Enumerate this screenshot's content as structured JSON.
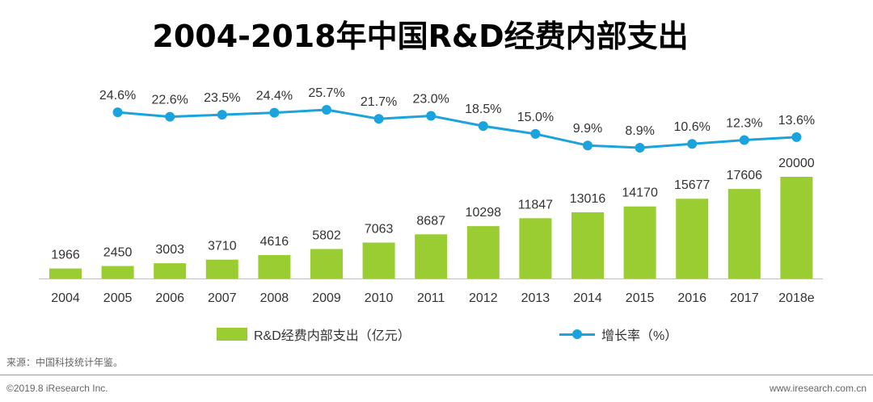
{
  "chart_data": {
    "type": "bar",
    "title": "2004-2018年中国R&D经费内部支出",
    "categories": [
      "2004",
      "2005",
      "2006",
      "2007",
      "2008",
      "2009",
      "2010",
      "2011",
      "2012",
      "2013",
      "2014",
      "2015",
      "2016",
      "2017",
      "2018e"
    ],
    "series": [
      {
        "name": "R&D经费内部支出（亿元）",
        "type": "bar",
        "values": [
          1966,
          2450,
          3003,
          3710,
          4616,
          5802,
          7063,
          8687,
          10298,
          11847,
          13016,
          14170,
          15677,
          17606,
          20000
        ],
        "labels": [
          "1966",
          "2450",
          "3003",
          "3710",
          "4616",
          "5802",
          "7063",
          "8687",
          "10298",
          "11847",
          "13016",
          "14170",
          "15677",
          "17606",
          "20000"
        ],
        "color": "#9ACD32"
      },
      {
        "name": "增长率（%）",
        "type": "line",
        "values": [
          null,
          24.6,
          22.6,
          23.5,
          24.4,
          25.7,
          21.7,
          23.0,
          18.5,
          15.0,
          9.9,
          8.9,
          10.6,
          12.3,
          13.6
        ],
        "labels": [
          "",
          "24.6%",
          "22.6%",
          "23.5%",
          "24.4%",
          "25.7%",
          "21.7%",
          "23.0%",
          "18.5%",
          "15.0%",
          "9.9%",
          "8.9%",
          "10.6%",
          "12.3%",
          "13.6%"
        ],
        "color": "#1AA3DC"
      }
    ],
    "grid": false,
    "legend": "bottom"
  },
  "footer": {
    "source": "来源：中国科技统计年鉴。",
    "copyright": "©2019.8 iResearch Inc.",
    "website": "www.iresearch.com.cn"
  }
}
